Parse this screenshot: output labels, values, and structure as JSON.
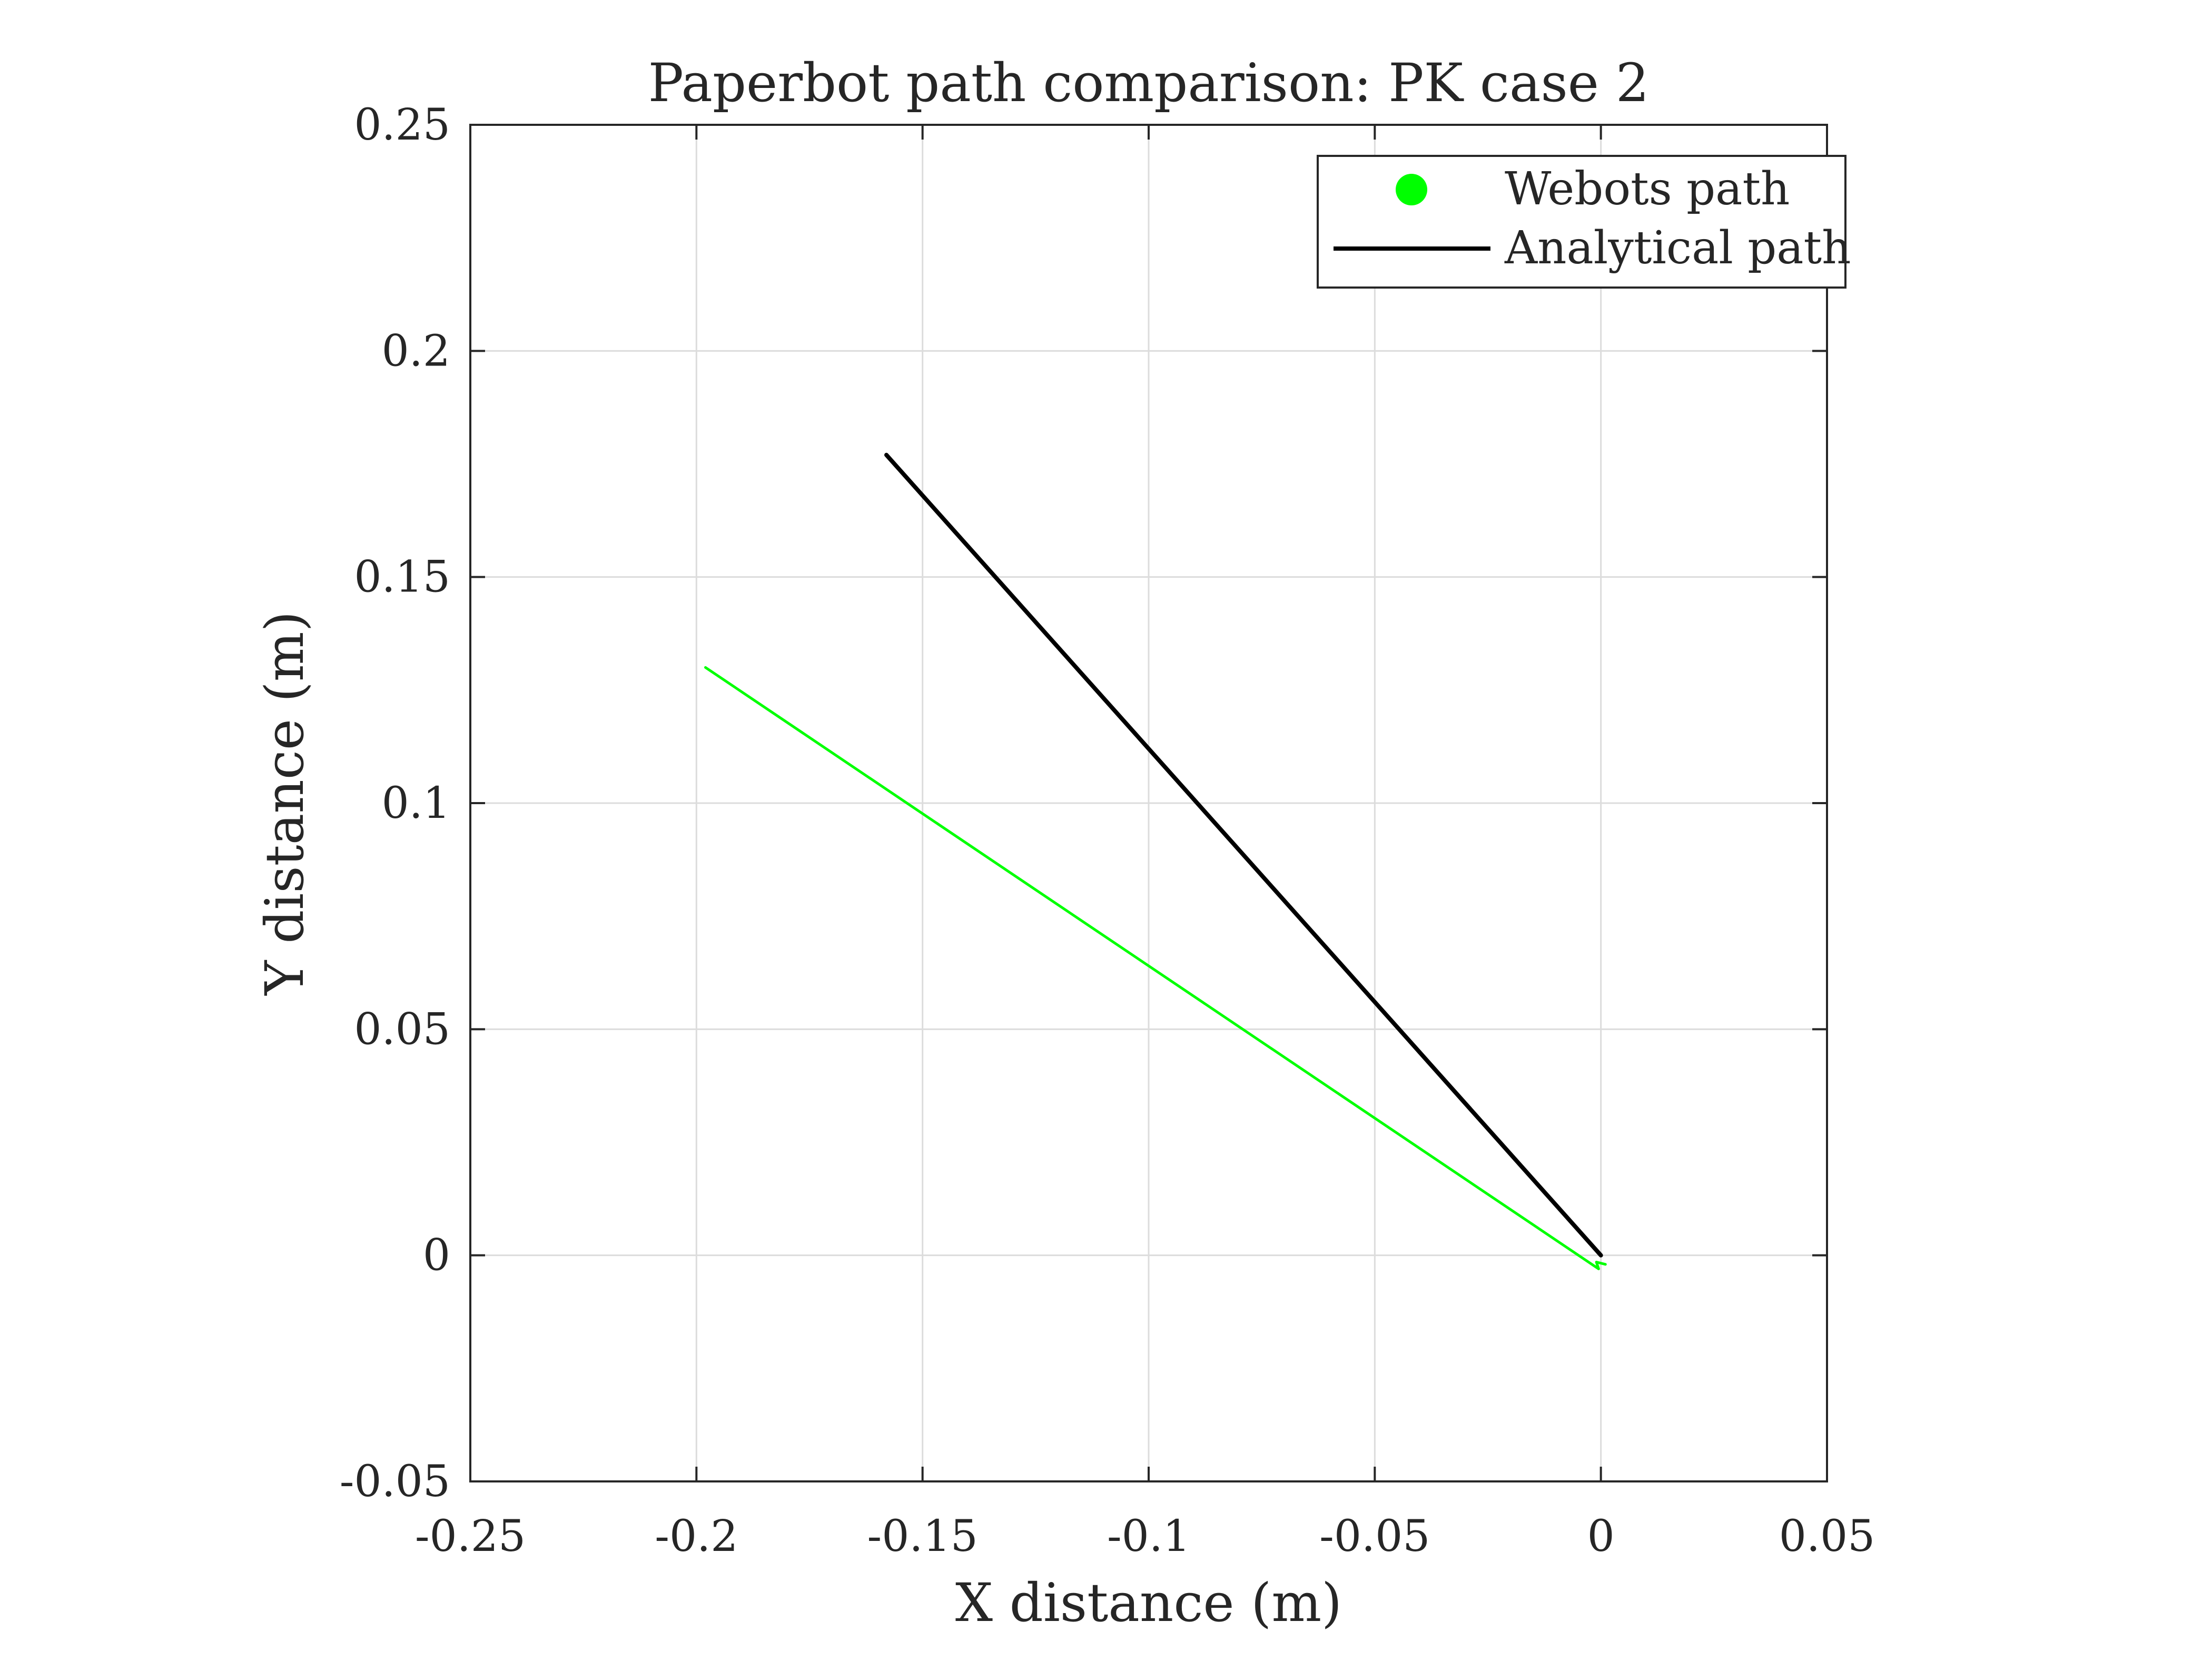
{
  "chart_data": {
    "type": "line",
    "title": "Paperbot path comparison: PK case 2",
    "xlabel": "X distance (m)",
    "ylabel": "Y distance (m)",
    "xlim": [
      -0.25,
      0.05
    ],
    "ylim": [
      -0.05,
      0.25
    ],
    "xticks": [
      -0.25,
      -0.2,
      -0.15,
      -0.1,
      -0.05,
      0,
      0.05
    ],
    "xtick_labels": [
      "-0.25",
      "-0.2",
      "-0.15",
      "-0.1",
      "-0.05",
      "0",
      "0.05"
    ],
    "yticks": [
      -0.05,
      0,
      0.05,
      0.1,
      0.15,
      0.2,
      0.25
    ],
    "ytick_labels": [
      "-0.05",
      "0",
      "0.05",
      "0.1",
      "0.15",
      "0.2",
      "0.25"
    ],
    "grid": true,
    "legend_position": "top-right",
    "series": [
      {
        "name": "Webots path",
        "color": "#00ff00",
        "legend_marker": "dot",
        "x": [
          0.001,
          -0.001,
          -0.0005,
          -0.198
        ],
        "y": [
          -0.002,
          -0.0015,
          -0.003,
          0.13
        ]
      },
      {
        "name": "Analytical path",
        "color": "#000000",
        "legend_marker": "line",
        "x": [
          0.0,
          -0.158
        ],
        "y": [
          0.0,
          0.177
        ]
      }
    ]
  }
}
